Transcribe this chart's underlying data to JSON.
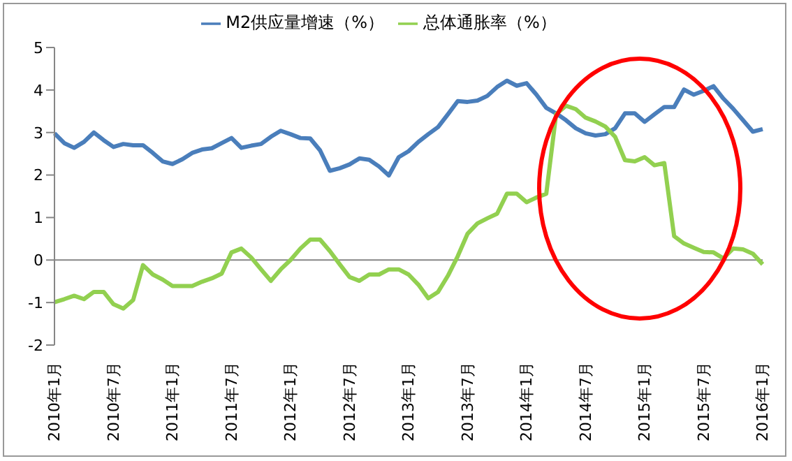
{
  "chart_data": {
    "type": "line",
    "categories": [
      "2010年1月",
      null,
      null,
      null,
      null,
      null,
      "2010年7月",
      null,
      null,
      null,
      null,
      null,
      "2011年1月",
      null,
      null,
      null,
      null,
      null,
      "2011年7月",
      null,
      null,
      null,
      null,
      null,
      "2012年1月",
      null,
      null,
      null,
      null,
      null,
      "2012年7月",
      null,
      null,
      null,
      null,
      null,
      "2013年1月",
      null,
      null,
      null,
      null,
      null,
      "2013年7月",
      null,
      null,
      null,
      null,
      null,
      "2014年1月",
      null,
      null,
      null,
      null,
      null,
      "2014年7月",
      null,
      null,
      null,
      null,
      null,
      "2015年1月",
      null,
      null,
      null,
      null,
      null,
      "2015年7月",
      null,
      null,
      null,
      null,
      null,
      "2016年1月"
    ],
    "series": [
      {
        "name": "M2供应量增速（%）",
        "color": "#4a7ebb",
        "values": [
          2.98,
          2.75,
          2.64,
          2.78,
          3.0,
          2.82,
          2.66,
          2.73,
          2.7,
          2.7,
          2.52,
          2.32,
          2.26,
          2.37,
          2.52,
          2.6,
          2.63,
          2.75,
          2.87,
          2.64,
          2.69,
          2.73,
          2.9,
          3.04,
          2.96,
          2.87,
          2.86,
          2.58,
          2.1,
          2.16,
          2.25,
          2.39,
          2.36,
          2.2,
          1.99,
          2.42,
          2.56,
          2.78,
          2.96,
          3.13,
          3.43,
          3.74,
          3.72,
          3.75,
          3.86,
          4.07,
          4.22,
          4.1,
          4.16,
          3.89,
          3.58,
          3.45,
          3.29,
          3.1,
          2.98,
          2.93,
          2.96,
          3.1,
          3.45,
          3.45,
          3.25,
          3.43,
          3.6,
          3.6,
          4.01,
          3.89,
          3.98,
          4.09,
          3.8,
          3.56,
          3.29,
          3.02,
          3.08
        ]
      },
      {
        "name": "总体通胀率（%）",
        "color": "#92d050",
        "values": [
          -0.99,
          -0.92,
          -0.84,
          -0.92,
          -0.75,
          -0.75,
          -1.04,
          -1.14,
          -0.94,
          -0.12,
          -0.34,
          -0.46,
          -0.61,
          -0.61,
          -0.61,
          -0.51,
          -0.43,
          -0.32,
          0.18,
          0.27,
          0.06,
          -0.22,
          -0.49,
          -0.22,
          0.0,
          0.27,
          0.48,
          0.48,
          0.21,
          -0.1,
          -0.4,
          -0.49,
          -0.34,
          -0.34,
          -0.22,
          -0.22,
          -0.34,
          -0.58,
          -0.9,
          -0.75,
          -0.37,
          0.09,
          0.62,
          0.86,
          0.98,
          1.09,
          1.56,
          1.56,
          1.36,
          1.47,
          1.56,
          3.43,
          3.63,
          3.55,
          3.35,
          3.26,
          3.14,
          2.9,
          2.35,
          2.32,
          2.42,
          2.23,
          2.28,
          0.56,
          0.39,
          0.29,
          0.19,
          0.18,
          0.04,
          0.27,
          0.25,
          0.15,
          -0.1
        ]
      }
    ],
    "ylim": [
      -2,
      5
    ],
    "yticks": [
      -2,
      -1,
      0,
      1,
      2,
      3,
      4,
      5
    ],
    "ref_lines": [
      {
        "axis": "y",
        "value": 0,
        "color": "#868686"
      }
    ],
    "grid": false,
    "legend": "top",
    "marker": "none",
    "line_style": "solid"
  }
}
